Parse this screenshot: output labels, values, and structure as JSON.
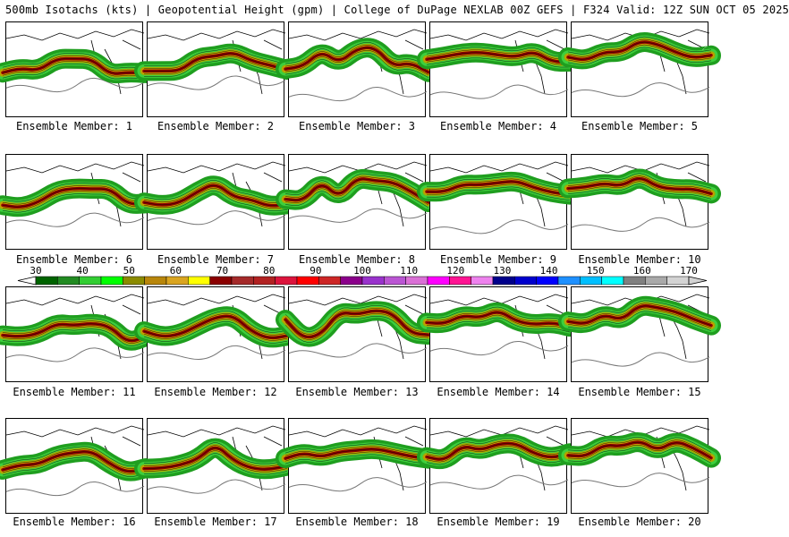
{
  "header": {
    "title": "500mb Isotachs (kts) | Geopotential Height (gpm) | College of DuPage NEXLAB   00Z GEFS | F324 Valid: 12Z SUN OCT 05 2025"
  },
  "panels": [
    {
      "label": "Ensemble Member: 1"
    },
    {
      "label": "Ensemble Member: 2"
    },
    {
      "label": "Ensemble Member: 3"
    },
    {
      "label": "Ensemble Member: 4"
    },
    {
      "label": "Ensemble Member: 5"
    },
    {
      "label": "Ensemble Member: 6"
    },
    {
      "label": "Ensemble Member: 7"
    },
    {
      "label": "Ensemble Member: 8"
    },
    {
      "label": "Ensemble Member: 9"
    },
    {
      "label": "Ensemble Member: 10"
    },
    {
      "label": "Ensemble Member: 11"
    },
    {
      "label": "Ensemble Member: 12"
    },
    {
      "label": "Ensemble Member: 13"
    },
    {
      "label": "Ensemble Member: 14"
    },
    {
      "label": "Ensemble Member: 15"
    },
    {
      "label": "Ensemble Member: 16"
    },
    {
      "label": "Ensemble Member: 17"
    },
    {
      "label": "Ensemble Member: 18"
    },
    {
      "label": "Ensemble Member: 19"
    },
    {
      "label": "Ensemble Member: 20"
    }
  ],
  "colorbar": {
    "labels": [
      "30",
      "40",
      "50",
      "60",
      "70",
      "80",
      "90",
      "100",
      "110",
      "120",
      "130",
      "140",
      "150",
      "160",
      "170"
    ],
    "colors": [
      "#006400",
      "#228b22",
      "#32cd32",
      "#00ff00",
      "#8b8b00",
      "#b8860b",
      "#daa520",
      "#ffff00",
      "#8b0000",
      "#a52a2a",
      "#b22222",
      "#dc143c",
      "#ff0000",
      "#cd2626",
      "#8b008b",
      "#9932cc",
      "#ba55d3",
      "#da70d6",
      "#ff00ff",
      "#ff1493",
      "#ee82ee",
      "#00008b",
      "#0000cd",
      "#0000ff",
      "#1e90ff",
      "#00bfff",
      "#00ffff",
      "#808080",
      "#a9a9a9",
      "#d3d3d3"
    ]
  }
}
